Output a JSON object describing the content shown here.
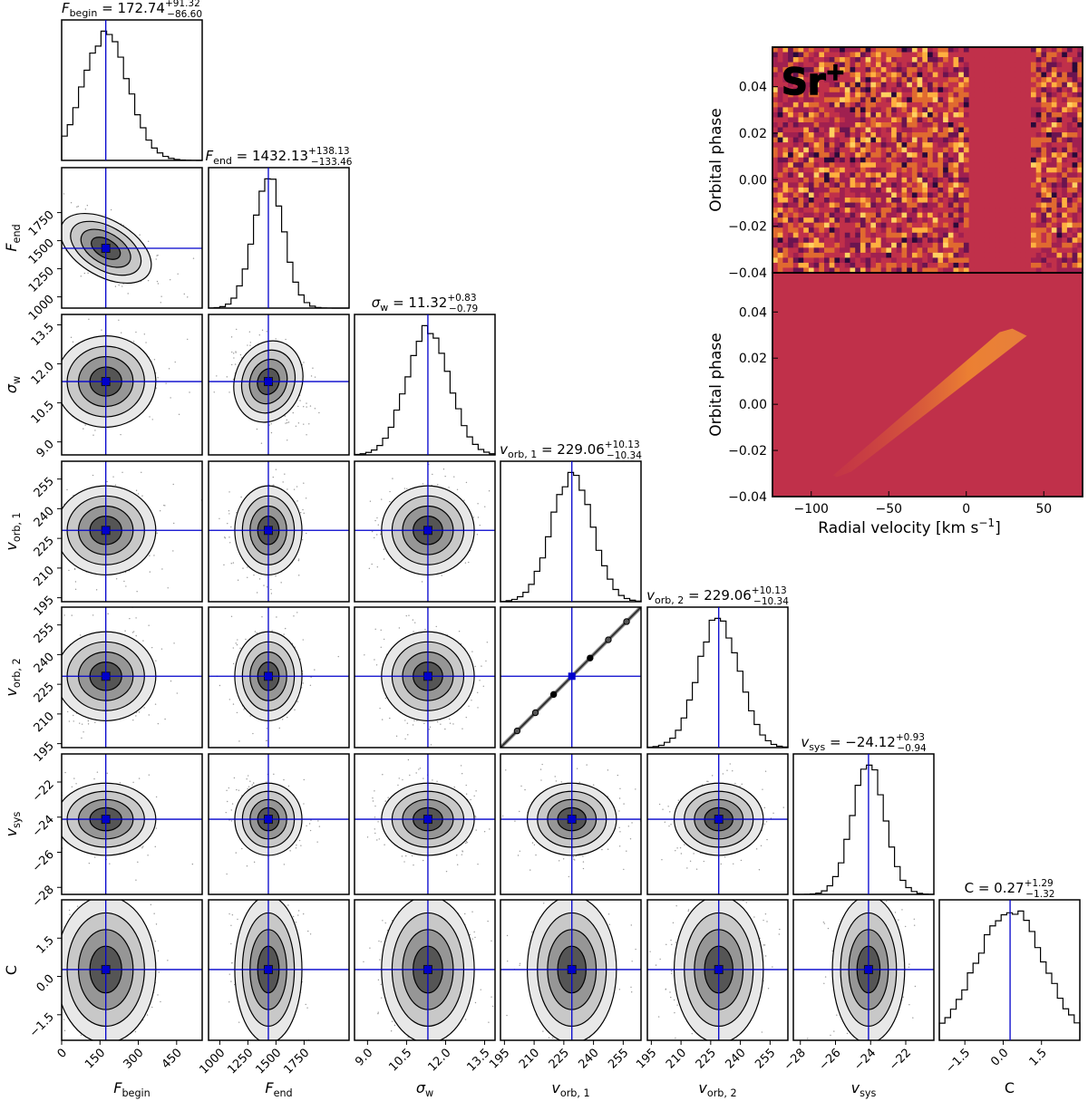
{
  "chart_data": [
    {
      "type": "corner",
      "parameters": [
        {
          "key": "Fbegin",
          "label_main": "F",
          "label_sub": "begin",
          "median": 172.74,
          "err_plus": "+91.32",
          "err_minus": "−86.60",
          "title_value": "172.74",
          "range": [
            0,
            550
          ],
          "ticks": [
            0,
            150,
            300,
            450
          ],
          "tick_labels": [
            "0",
            "150",
            "300",
            "450"
          ]
        },
        {
          "key": "Fend",
          "label_main": "F",
          "label_sub": "end",
          "median": 1432.13,
          "err_plus": "+138.13",
          "err_minus": "−133.46",
          "title_value": "1432.13",
          "range": [
            900,
            2150
          ],
          "ticks": [
            1000,
            1250,
            1500,
            1750
          ],
          "tick_labels": [
            "1000",
            "1250",
            "1500",
            "1750"
          ]
        },
        {
          "key": "sigmaw",
          "label_main": "σ",
          "label_sub": "w",
          "median": 11.32,
          "err_plus": "+0.83",
          "err_minus": "−0.79",
          "title_value": "11.32",
          "range": [
            8.5,
            13.9
          ],
          "ticks": [
            9.0,
            10.5,
            12.0,
            13.5
          ],
          "tick_labels": [
            "9.0",
            "10.5",
            "12.0",
            "13.5"
          ]
        },
        {
          "key": "vorb1",
          "label_main": "v",
          "label_sub": "orb, 1",
          "median": 229.06,
          "err_plus": "+10.13",
          "err_minus": "−10.34",
          "title_value": "229.06",
          "range": [
            193,
            264
          ],
          "ticks": [
            195,
            210,
            225,
            240,
            255
          ],
          "tick_labels": [
            "195",
            "210",
            "225",
            "240",
            "255"
          ]
        },
        {
          "key": "vorb2",
          "label_main": "v",
          "label_sub": "orb, 2",
          "median": 229.06,
          "err_plus": "+10.13",
          "err_minus": "−10.34",
          "title_value": "229.06",
          "range": [
            193,
            264
          ],
          "ticks": [
            195,
            210,
            225,
            240,
            255
          ],
          "tick_labels": [
            "195",
            "210",
            "225",
            "240",
            "255"
          ]
        },
        {
          "key": "vsys",
          "label_main": "v",
          "label_sub": "sys",
          "median": -24.12,
          "err_plus": "+0.93",
          "err_minus": "−0.94",
          "title_value": "−24.12",
          "range": [
            -28.4,
            -20.4
          ],
          "ticks": [
            -28,
            -26,
            -24,
            -22
          ],
          "tick_labels": [
            "−28",
            "−26",
            "−24",
            "−22"
          ]
        },
        {
          "key": "C",
          "label_main": "C",
          "label_sub": "",
          "median": 0.27,
          "err_plus": "+1.29",
          "err_minus": "−1.32",
          "title_value": "0.27",
          "range": [
            -2.5,
            3.0
          ],
          "ticks": [
            -1.5,
            0.0,
            1.5
          ],
          "tick_labels": [
            "−1.5",
            "0.0",
            "1.5"
          ]
        }
      ],
      "correlations": {
        "Fbegin-Fend": -0.55,
        "Fend-sigmaw": -0.35,
        "Fbegin-sigmaw": 0.05,
        "vorb1-vorb2": 1.0,
        "default": 0.0
      },
      "marker_color": "#0000cc",
      "grid": false
    },
    {
      "type": "heatmap",
      "label": "Sr",
      "label_superscript": "+",
      "panels": [
        {
          "name": "observed",
          "ylabel": "Orbital phase",
          "masked_velocity_range": [
            0,
            40
          ]
        },
        {
          "name": "model",
          "ylabel": "Orbital phase",
          "trail": {
            "start_velocity": -80,
            "start_phase": -0.03,
            "end_velocity": 32,
            "end_phase": 0.032
          }
        }
      ],
      "xlabel": "Radial velocity [km s",
      "xlabel_sup": "−1",
      "xlabel_end": "]",
      "xlim": [
        -125,
        75
      ],
      "ylim": [
        -0.04,
        0.057
      ],
      "x_ticks": [
        -100,
        -50,
        0,
        50
      ],
      "x_tick_labels": [
        "−100",
        "−50",
        "0",
        "50"
      ],
      "y_ticks": [
        -0.04,
        -0.02,
        0.0,
        0.02,
        0.04
      ],
      "y_tick_labels": [
        "−0.04",
        "−0.02",
        "0.00",
        "0.02",
        "0.04"
      ],
      "colors": {
        "background": "#c0304a",
        "dark": "#2a0a3a",
        "bright": "#ffd060"
      }
    }
  ]
}
